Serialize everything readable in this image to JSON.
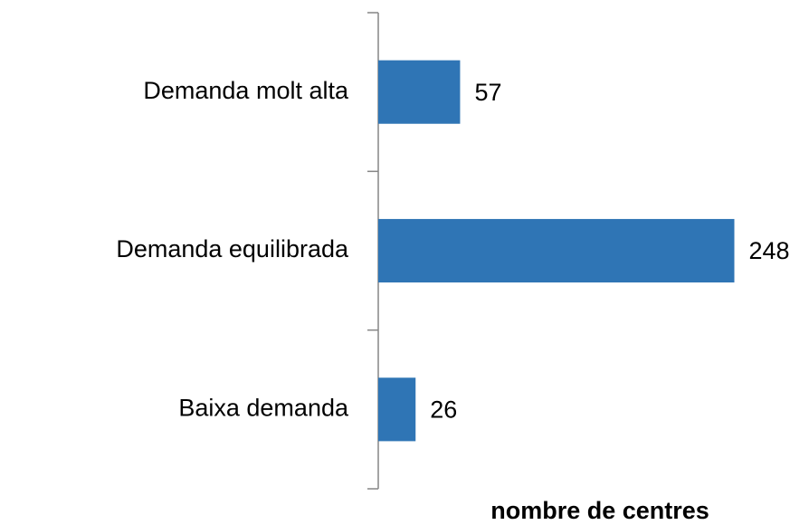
{
  "chart_data": {
    "type": "hbar",
    "categories": [
      "Demanda molt alta",
      "Demanda equilibrada",
      "Baixa demanda"
    ],
    "values": [
      57,
      248,
      26
    ],
    "color": "#2f75b5",
    "xlabel": "nombre de centres",
    "xlim": [
      0,
      300
    ]
  }
}
